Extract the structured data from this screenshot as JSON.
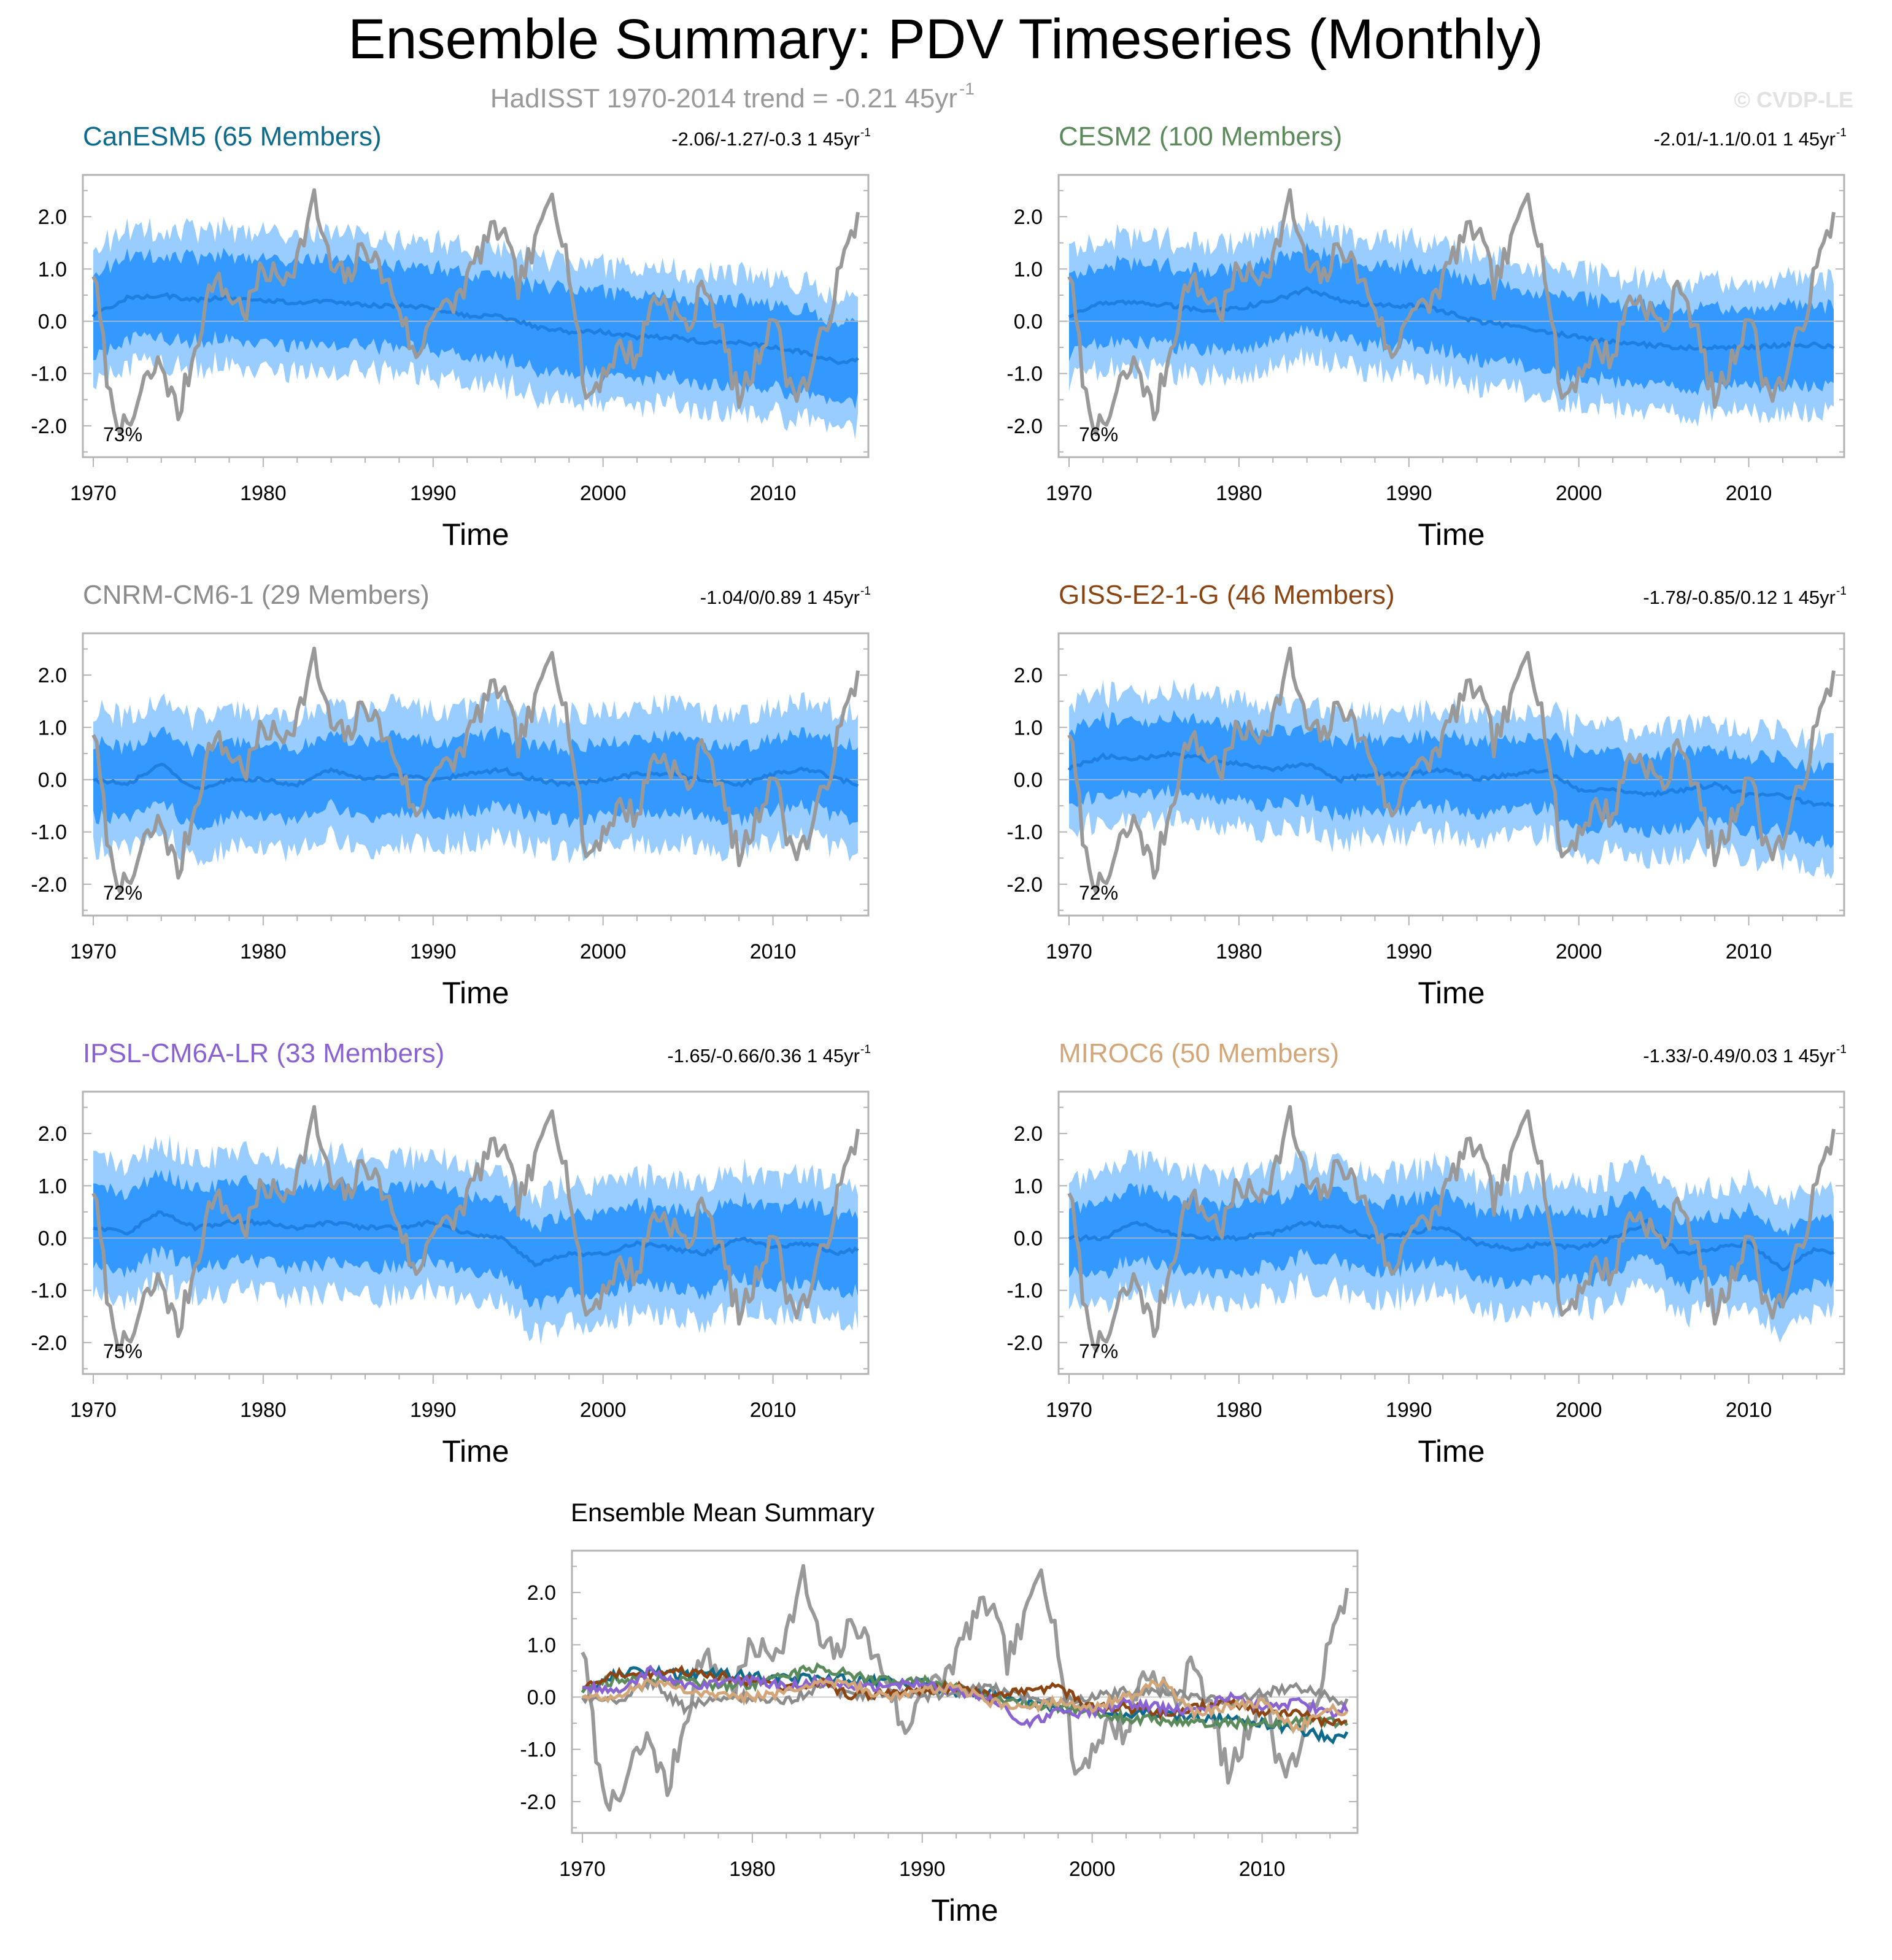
{
  "title": "Ensemble Summary: PDV Timeseries (Monthly)",
  "subtitle": "HadISST 1970-2014 trend = -0.21 45yr",
  "subtitle_sup": "-1",
  "watermark": "© CVDP-LE",
  "observed_color": "#999999",
  "band_outer_color": "#99ccff",
  "band_inner_color": "#3399ff",
  "mean_line_color": "#1e7fe0",
  "chart_data": [
    {
      "type": "line",
      "title": "CanESM5 (65 Members)",
      "title_color": "#0e6b8c",
      "trend": "-2.06/-1.27/-0.3 1 45yr",
      "trend_sup": "-1",
      "pct": "73%",
      "xlabel": "Time",
      "ylabel": "",
      "xlim": [
        1970,
        2015
      ],
      "ylim": [
        -2.6,
        2.8
      ],
      "x_ticks": [
        "1970",
        "1980",
        "1990",
        "2000",
        "2010"
      ],
      "y_ticks": [
        "2.0",
        "1.0",
        "0.0",
        "-1.0",
        "-2.0"
      ],
      "series": [
        {
          "name": "Ensemble mean",
          "x": [
            1970,
            1972,
            1974,
            1976,
            1978,
            1980,
            1982,
            1984,
            1986,
            1988,
            1990,
            1992,
            1994,
            1996,
            1998,
            2000,
            2002,
            2004,
            2006,
            2008,
            2010,
            2012,
            2014,
            2015
          ],
          "values": [
            0.1,
            0.45,
            0.5,
            0.4,
            0.45,
            0.4,
            0.35,
            0.4,
            0.3,
            0.3,
            0.25,
            0.1,
            0.1,
            -0.1,
            -0.2,
            -0.2,
            -0.3,
            -0.3,
            -0.4,
            -0.4,
            -0.5,
            -0.6,
            -0.8,
            -0.7
          ]
        },
        {
          "name": "Ensemble spread (inner)",
          "x": [
            1970,
            1975,
            1980,
            1985,
            1990,
            1995,
            2000,
            2005,
            2010,
            2015
          ],
          "half_width": [
            0.8,
            0.8,
            0.8,
            0.8,
            0.8,
            0.8,
            0.8,
            0.8,
            0.8,
            0.8
          ]
        },
        {
          "name": "Ensemble spread (outer)",
          "x": [
            1970,
            1975,
            1980,
            1985,
            1990,
            1995,
            2000,
            2005,
            2010,
            2015
          ],
          "half_width": [
            1.3,
            1.3,
            1.3,
            1.3,
            1.3,
            1.3,
            1.3,
            1.3,
            1.3,
            1.3
          ]
        }
      ]
    },
    {
      "type": "line",
      "title": "CESM2 (100 Members)",
      "title_color": "#5b8a5b",
      "trend": "-2.01/-1.1/0.01 1 45yr",
      "trend_sup": "-1",
      "pct": "76%",
      "xlabel": "Time",
      "ylabel": "",
      "xlim": [
        1970,
        2015
      ],
      "ylim": [
        -2.6,
        2.8
      ],
      "x_ticks": [
        "1970",
        "1980",
        "1990",
        "2000",
        "2010"
      ],
      "y_ticks": [
        "2.0",
        "1.0",
        "0.0",
        "-1.0",
        "-2.0"
      ],
      "series": [
        {
          "name": "Ensemble mean",
          "x": [
            1970,
            1972,
            1974,
            1976,
            1978,
            1980,
            1982,
            1984,
            1986,
            1988,
            1990,
            1992,
            1994,
            1996,
            1998,
            2000,
            2002,
            2004,
            2006,
            2008,
            2010,
            2012,
            2014,
            2015
          ],
          "values": [
            0.1,
            0.35,
            0.35,
            0.3,
            0.2,
            0.25,
            0.4,
            0.6,
            0.4,
            0.3,
            0.3,
            0.2,
            0.0,
            -0.1,
            -0.2,
            -0.3,
            -0.4,
            -0.45,
            -0.5,
            -0.5,
            -0.5,
            -0.45,
            -0.45,
            -0.5
          ]
        },
        {
          "name": "Ensemble spread (inner)",
          "x": [
            1970,
            1975,
            1980,
            1985,
            1990,
            1995,
            2000,
            2005,
            2010,
            2015
          ],
          "half_width": [
            0.75,
            0.75,
            0.75,
            0.75,
            0.75,
            0.75,
            0.75,
            0.75,
            0.75,
            0.75
          ]
        },
        {
          "name": "Ensemble spread (outer)",
          "x": [
            1970,
            1975,
            1980,
            1985,
            1990,
            1995,
            2000,
            2005,
            2010,
            2015
          ],
          "half_width": [
            1.25,
            1.25,
            1.25,
            1.25,
            1.25,
            1.25,
            1.25,
            1.25,
            1.25,
            1.25
          ]
        }
      ]
    },
    {
      "type": "line",
      "title": "CNRM-CM6-1 (29 Members)",
      "title_color": "#8c8c8c",
      "trend": "-1.04/0/0.89 1 45yr",
      "trend_sup": "-1",
      "pct": "72%",
      "xlabel": "Time",
      "ylabel": "",
      "xlim": [
        1970,
        2015
      ],
      "ylim": [
        -2.6,
        2.8
      ],
      "x_ticks": [
        "1970",
        "1980",
        "1990",
        "2000",
        "2010"
      ],
      "y_ticks": [
        "2.0",
        "1.0",
        "0.0",
        "-1.0",
        "-2.0"
      ],
      "series": [
        {
          "name": "Ensemble mean",
          "x": [
            1970,
            1972,
            1974,
            1976,
            1978,
            1980,
            1982,
            1984,
            1986,
            1988,
            1990,
            1992,
            1994,
            1996,
            1998,
            2000,
            2002,
            2004,
            2006,
            2008,
            2010,
            2012,
            2014,
            2015
          ],
          "values": [
            0.0,
            -0.1,
            0.3,
            -0.2,
            0.0,
            0.0,
            -0.1,
            0.2,
            0.0,
            0.1,
            0.0,
            0.1,
            0.2,
            0.0,
            -0.1,
            0.0,
            0.1,
            0.1,
            0.0,
            -0.1,
            0.1,
            0.2,
            0.0,
            -0.1
          ]
        },
        {
          "name": "Ensemble spread (inner)",
          "x": [
            1970,
            1975,
            1980,
            1985,
            1990,
            1995,
            2000,
            2005,
            2010,
            2015
          ],
          "half_width": [
            0.7,
            0.7,
            0.7,
            0.7,
            0.7,
            0.7,
            0.7,
            0.7,
            0.7,
            0.7
          ]
        },
        {
          "name": "Ensemble spread (outer)",
          "x": [
            1970,
            1975,
            1980,
            1985,
            1990,
            1995,
            2000,
            2005,
            2010,
            2015
          ],
          "half_width": [
            1.3,
            1.3,
            1.3,
            1.3,
            1.3,
            1.3,
            1.3,
            1.3,
            1.3,
            1.3
          ]
        }
      ]
    },
    {
      "type": "line",
      "title": "GISS-E2-1-G (46 Members)",
      "title_color": "#8b4513",
      "trend": "-1.78/-0.85/0.12 1 45yr",
      "trend_sup": "-1",
      "pct": "72%",
      "xlabel": "Time",
      "ylabel": "",
      "xlim": [
        1970,
        2015
      ],
      "ylim": [
        -2.6,
        2.8
      ],
      "x_ticks": [
        "1970",
        "1980",
        "1990",
        "2000",
        "2010"
      ],
      "y_ticks": [
        "2.0",
        "1.0",
        "0.0",
        "-1.0",
        "-2.0"
      ],
      "series": [
        {
          "name": "Ensemble mean",
          "x": [
            1970,
            1972,
            1974,
            1976,
            1978,
            1980,
            1982,
            1984,
            1986,
            1988,
            1990,
            1992,
            1994,
            1996,
            1998,
            2000,
            2002,
            2004,
            2006,
            2008,
            2010,
            2012,
            2014,
            2015
          ],
          "values": [
            0.2,
            0.45,
            0.4,
            0.5,
            0.4,
            0.3,
            0.2,
            0.3,
            0.0,
            0.1,
            0.1,
            0.2,
            0.0,
            0.1,
            0.2,
            -0.2,
            -0.2,
            -0.3,
            -0.2,
            -0.1,
            -0.3,
            -0.3,
            -0.5,
            -0.45
          ]
        },
        {
          "name": "Ensemble spread (inner)",
          "x": [
            1970,
            1975,
            1980,
            1985,
            1990,
            1995,
            2000,
            2005,
            2010,
            2015
          ],
          "half_width": [
            0.7,
            0.7,
            0.7,
            0.7,
            0.7,
            0.7,
            0.7,
            0.7,
            0.7,
            0.7
          ]
        },
        {
          "name": "Ensemble spread (outer)",
          "x": [
            1970,
            1975,
            1980,
            1985,
            1990,
            1995,
            2000,
            2005,
            2010,
            2015
          ],
          "half_width": [
            1.2,
            1.2,
            1.2,
            1.2,
            1.2,
            1.2,
            1.2,
            1.2,
            1.2,
            1.2
          ]
        }
      ]
    },
    {
      "type": "line",
      "title": "IPSL-CM6A-LR (33 Members)",
      "title_color": "#8a63d2",
      "trend": "-1.65/-0.66/0.36 1 45yr",
      "trend_sup": "-1",
      "pct": "75%",
      "xlabel": "Time",
      "ylabel": "",
      "xlim": [
        1970,
        2015
      ],
      "ylim": [
        -2.6,
        2.8
      ],
      "x_ticks": [
        "1970",
        "1980",
        "1990",
        "2000",
        "2010"
      ],
      "y_ticks": [
        "2.0",
        "1.0",
        "0.0",
        "-1.0",
        "-2.0"
      ],
      "series": [
        {
          "name": "Ensemble mean",
          "x": [
            1970,
            1972,
            1974,
            1976,
            1978,
            1980,
            1982,
            1984,
            1986,
            1988,
            1990,
            1992,
            1994,
            1996,
            1998,
            2000,
            2002,
            2004,
            2006,
            2008,
            2010,
            2012,
            2014,
            2015
          ],
          "values": [
            0.2,
            0.1,
            0.5,
            0.2,
            0.3,
            0.3,
            0.2,
            0.3,
            0.2,
            0.2,
            0.3,
            0.1,
            0.0,
            -0.5,
            -0.3,
            -0.3,
            -0.1,
            -0.2,
            -0.3,
            0.0,
            -0.2,
            -0.1,
            -0.3,
            -0.2
          ]
        },
        {
          "name": "Ensemble spread (inner)",
          "x": [
            1970,
            1975,
            1980,
            1985,
            1990,
            1995,
            2000,
            2005,
            2010,
            2015
          ],
          "half_width": [
            0.75,
            0.75,
            0.75,
            0.75,
            0.75,
            0.75,
            0.75,
            0.75,
            0.75,
            0.75
          ]
        },
        {
          "name": "Ensemble spread (outer)",
          "x": [
            1970,
            1975,
            1980,
            1985,
            1990,
            1995,
            2000,
            2005,
            2010,
            2015
          ],
          "half_width": [
            1.3,
            1.3,
            1.3,
            1.3,
            1.3,
            1.3,
            1.3,
            1.3,
            1.3,
            1.3
          ]
        }
      ]
    },
    {
      "type": "line",
      "title": "MIROC6 (50 Members)",
      "title_color": "#d2a679",
      "trend": "-1.33/-0.49/0.03 1 45yr",
      "trend_sup": "-1",
      "pct": "77%",
      "xlabel": "Time",
      "ylabel": "",
      "xlim": [
        1970,
        2015
      ],
      "ylim": [
        -2.6,
        2.8
      ],
      "x_ticks": [
        "1970",
        "1980",
        "1990",
        "2000",
        "2010"
      ],
      "y_ticks": [
        "2.0",
        "1.0",
        "0.0",
        "-1.0",
        "-2.0"
      ],
      "series": [
        {
          "name": "Ensemble mean",
          "x": [
            1970,
            1972,
            1974,
            1976,
            1978,
            1980,
            1982,
            1984,
            1986,
            1988,
            1990,
            1992,
            1994,
            1996,
            1998,
            2000,
            2002,
            2004,
            2006,
            2008,
            2010,
            2012,
            2014,
            2015
          ],
          "values": [
            0.0,
            0.0,
            0.3,
            0.1,
            0.0,
            0.0,
            0.1,
            0.3,
            0.2,
            0.0,
            0.1,
            0.2,
            -0.1,
            -0.2,
            -0.1,
            -0.2,
            0.0,
            0.3,
            -0.3,
            -0.2,
            -0.1,
            -0.6,
            -0.2,
            -0.3
          ]
        },
        {
          "name": "Ensemble spread (inner)",
          "x": [
            1970,
            1975,
            1980,
            1985,
            1990,
            1995,
            2000,
            2005,
            2010,
            2015
          ],
          "half_width": [
            0.65,
            0.65,
            0.65,
            0.65,
            0.65,
            0.65,
            0.65,
            0.65,
            0.65,
            0.65
          ]
        },
        {
          "name": "Ensemble spread (outer)",
          "x": [
            1970,
            1975,
            1980,
            1985,
            1990,
            1995,
            2000,
            2005,
            2010,
            2015
          ],
          "half_width": [
            1.2,
            1.2,
            1.2,
            1.2,
            1.2,
            1.2,
            1.2,
            1.2,
            1.2,
            1.2
          ]
        }
      ]
    },
    {
      "type": "line",
      "title": "Ensemble Mean Summary",
      "title_color": "#000000",
      "trend": "",
      "trend_sup": "",
      "pct": "",
      "xlabel": "Time",
      "ylabel": "",
      "xlim": [
        1970,
        2015
      ],
      "ylim": [
        -2.6,
        2.8
      ],
      "x_ticks": [
        "1970",
        "1980",
        "1990",
        "2000",
        "2010"
      ],
      "y_ticks": [
        "2.0",
        "1.0",
        "0.0",
        "-1.0",
        "-2.0"
      ],
      "series": [
        {
          "name": "CanESM5",
          "color": "#0e6b8c"
        },
        {
          "name": "CESM2",
          "color": "#5b8a5b"
        },
        {
          "name": "CNRM-CM6-1",
          "color": "#8c8c8c"
        },
        {
          "name": "GISS-E2-1-G",
          "color": "#8b4513"
        },
        {
          "name": "IPSL-CM6A-LR",
          "color": "#8a63d2"
        },
        {
          "name": "MIROC6",
          "color": "#d2a679"
        }
      ]
    }
  ],
  "observed_series": {
    "name": "HadISST",
    "x": [
      1970,
      1971,
      1972,
      1973,
      1974,
      1975,
      1976,
      1977,
      1978,
      1979,
      1980,
      1981,
      1982,
      1983,
      1984,
      1985,
      1986,
      1987,
      1988,
      1989,
      1990,
      1991,
      1992,
      1993,
      1994,
      1995,
      1996,
      1997,
      1998,
      1999,
      2000,
      2001,
      2002,
      2003,
      2004,
      2005,
      2006,
      2007,
      2008,
      2009,
      2010,
      2011,
      2012,
      2013,
      2014,
      2015
    ],
    "values": [
      1.0,
      -1.5,
      -2.2,
      -1.2,
      -0.8,
      -1.8,
      -0.5,
      0.8,
      0.5,
      0.2,
      1.0,
      0.8,
      1.2,
      2.3,
      1.0,
      0.8,
      1.5,
      0.9,
      0.3,
      -0.8,
      0.3,
      0.2,
      0.8,
      1.5,
      1.8,
      0.7,
      1.4,
      2.6,
      1.0,
      -1.5,
      -1.0,
      -0.5,
      -0.7,
      0.5,
      0.3,
      -0.2,
      0.8,
      -0.3,
      -1.5,
      -0.8,
      0.2,
      -1.3,
      -1.2,
      -0.2,
      1.0,
      2.0
    ]
  }
}
